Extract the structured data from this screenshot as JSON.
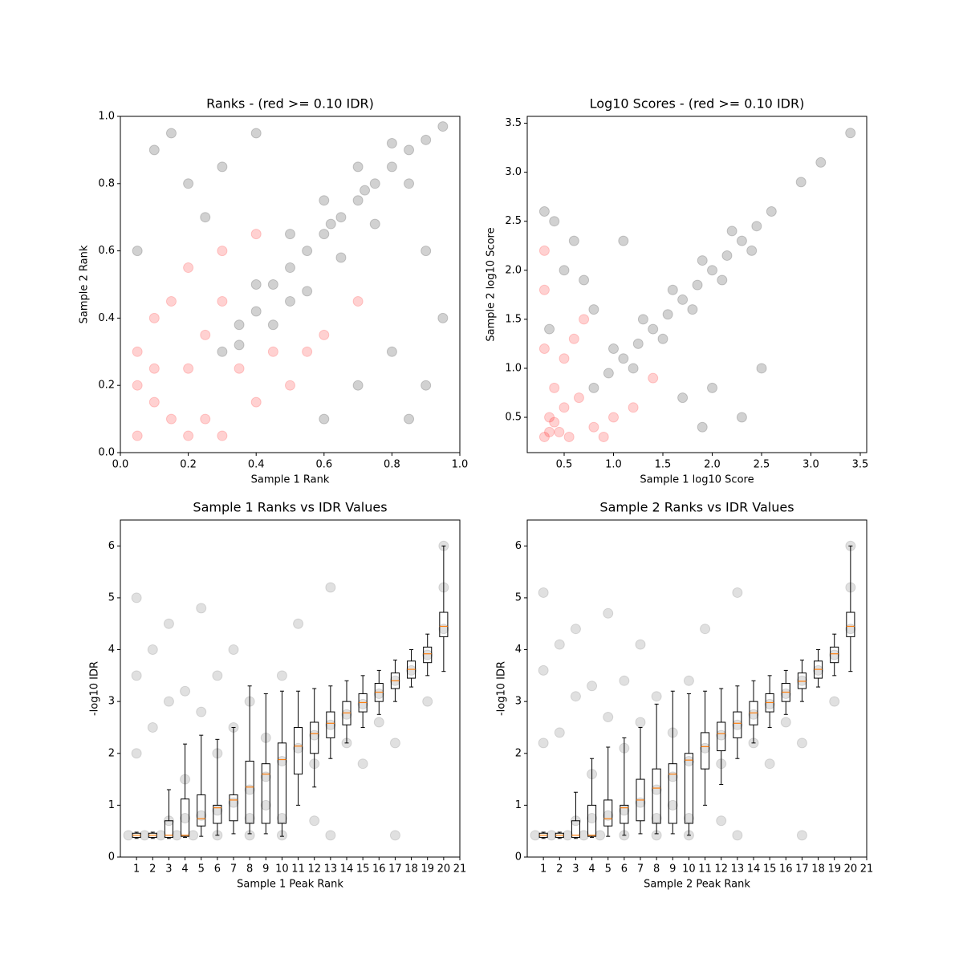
{
  "chart_data": [
    {
      "type": "scatter",
      "title": "Ranks - (red >= 0.10 IDR)",
      "x_label": "Sample 1 Rank",
      "y_label": "Sample 2 Rank",
      "xlim": [
        0,
        1
      ],
      "ylim": [
        0,
        1
      ],
      "xticks": [
        {
          "value": 0,
          "label": "0.0"
        },
        {
          "value": 0.2,
          "label": "0.2"
        },
        {
          "value": 0.4,
          "label": "0.4"
        },
        {
          "value": 0.6,
          "label": "0.6"
        },
        {
          "value": 0.8,
          "label": "0.8"
        },
        {
          "value": 1,
          "label": "1.0"
        }
      ],
      "yticks": [
        {
          "value": 0,
          "label": "0.0"
        },
        {
          "value": 0.2,
          "label": "0.2"
        },
        {
          "value": 0.4,
          "label": "0.4"
        },
        {
          "value": 0.6,
          "label": "0.6"
        },
        {
          "value": 0.8,
          "label": "0.8"
        },
        {
          "value": 1,
          "label": "1.0"
        }
      ],
      "series": [
        {
          "color": "#ff0000",
          "x": [
            0.05,
            0.1,
            0.15,
            0.2,
            0.05,
            0.1,
            0.25,
            0.3,
            0.4,
            0.5,
            0.15,
            0.2,
            0.3,
            0.55,
            0.6,
            0.05,
            0.2,
            0.35,
            0.25,
            0.45,
            0.3,
            0.1,
            0.7,
            0.4
          ],
          "values": [
            0.05,
            0.15,
            0.1,
            0.25,
            0.3,
            0.4,
            0.1,
            0.05,
            0.15,
            0.2,
            0.45,
            0.55,
            0.6,
            0.3,
            0.35,
            0.2,
            0.05,
            0.25,
            0.35,
            0.3,
            0.45,
            0.25,
            0.45,
            0.65
          ]
        },
        {
          "color": "#000000",
          "x": [
            0.3,
            0.35,
            0.4,
            0.45,
            0.5,
            0.55,
            0.6,
            0.65,
            0.7,
            0.75,
            0.8,
            0.85,
            0.9,
            0.95,
            0.4,
            0.5,
            0.6,
            0.7,
            0.8,
            0.45,
            0.55,
            0.65,
            0.75,
            0.85,
            0.35,
            0.5,
            0.62,
            0.72,
            0.1,
            0.2,
            0.05,
            0.15,
            0.3,
            0.9,
            0.85,
            0.95,
            0.8,
            0.7,
            0.6,
            0.9,
            0.25,
            0.4
          ],
          "values": [
            0.3,
            0.38,
            0.42,
            0.5,
            0.55,
            0.6,
            0.65,
            0.7,
            0.75,
            0.8,
            0.85,
            0.9,
            0.93,
            0.97,
            0.5,
            0.65,
            0.75,
            0.85,
            0.92,
            0.38,
            0.48,
            0.58,
            0.68,
            0.8,
            0.32,
            0.45,
            0.68,
            0.78,
            0.9,
            0.8,
            0.6,
            0.95,
            0.85,
            0.2,
            0.1,
            0.4,
            0.3,
            0.2,
            0.1,
            0.6,
            0.7,
            0.95
          ]
        }
      ]
    },
    {
      "type": "scatter",
      "title": "Log10 Scores - (red >= 0.10 IDR)",
      "x_label": "Sample 1 log10 Score",
      "y_label": "Sample 2 log10 Score",
      "xlim": [
        0.126,
        3.565
      ],
      "ylim": [
        0.14,
        3.57
      ],
      "xticks": [
        0.5,
        {
          "value": 1,
          "label": "1.0"
        },
        1.5,
        {
          "value": 2,
          "label": "2.0"
        },
        2.5,
        {
          "value": 3,
          "label": "3.0"
        },
        3.5
      ],
      "yticks": [
        0.5,
        {
          "value": 1,
          "label": "1.0"
        },
        1.5,
        {
          "value": 2,
          "label": "2.0"
        },
        2.5,
        {
          "value": 3,
          "label": "3.0"
        },
        3.5
      ],
      "series": [
        {
          "color": "#ff0000",
          "x": [
            0.3,
            0.35,
            0.4,
            0.5,
            0.6,
            0.7,
            0.3,
            0.35,
            0.4,
            0.5,
            0.8,
            1.0,
            1.2,
            1.4,
            0.45,
            0.55,
            0.3,
            0.3,
            0.65,
            0.9
          ],
          "values": [
            0.3,
            0.5,
            0.8,
            1.1,
            1.3,
            1.5,
            1.8,
            0.35,
            0.45,
            0.6,
            0.4,
            0.5,
            0.6,
            0.9,
            0.35,
            0.3,
            2.2,
            1.2,
            0.7,
            0.3
          ]
        },
        {
          "color": "#000000",
          "x": [
            0.8,
            0.95,
            1.1,
            1.25,
            1.4,
            1.55,
            1.7,
            1.85,
            2.0,
            2.15,
            2.3,
            2.45,
            2.6,
            1.0,
            1.3,
            1.6,
            1.9,
            2.2,
            1.2,
            1.5,
            1.8,
            2.1,
            2.4,
            0.4,
            0.5,
            0.6,
            0.8,
            0.3,
            1.7,
            2.0,
            2.3,
            2.5,
            1.9,
            2.9,
            3.1,
            3.4,
            0.7,
            1.1,
            0.35
          ],
          "values": [
            0.8,
            0.95,
            1.1,
            1.25,
            1.4,
            1.55,
            1.7,
            1.85,
            2.0,
            2.15,
            2.3,
            2.45,
            2.6,
            1.2,
            1.5,
            1.8,
            2.1,
            2.4,
            1.0,
            1.3,
            1.6,
            1.9,
            2.2,
            2.5,
            2.0,
            2.3,
            1.6,
            2.6,
            0.7,
            0.8,
            0.5,
            1.0,
            0.4,
            2.9,
            3.1,
            3.4,
            1.9,
            2.3,
            1.4
          ]
        }
      ]
    },
    {
      "type": "box",
      "title": "Sample 1 Ranks vs IDR Values",
      "x_label": "Sample 1 Peak Rank",
      "y_label": "-log10 IDR",
      "xlim": [
        0,
        21
      ],
      "ylim": [
        0,
        6.5
      ],
      "xticks": [
        1,
        2,
        3,
        4,
        5,
        6,
        7,
        8,
        9,
        10,
        11,
        12,
        13,
        14,
        15,
        16,
        17,
        18,
        19,
        20,
        21
      ],
      "yticks": [
        0,
        1,
        2,
        3,
        4,
        5,
        6
      ],
      "series": [
        {
          "color": "#000000",
          "x": [
            0.5,
            1.5,
            2.5,
            3.5,
            4.5,
            6,
            8,
            10,
            13,
            17,
            1,
            1,
            1,
            2,
            2,
            3,
            3,
            4,
            4,
            5,
            5,
            6,
            6,
            7,
            7,
            8,
            9,
            10,
            11,
            13,
            3,
            4,
            5,
            6,
            7,
            8,
            9,
            10,
            11,
            12,
            13,
            14,
            15,
            16,
            17,
            18,
            19,
            20,
            20,
            20,
            8,
            10,
            12,
            15,
            17,
            19,
            9,
            12,
            14,
            16
          ],
          "values": [
            0.42,
            0.42,
            0.42,
            0.42,
            0.42,
            0.42,
            0.42,
            0.42,
            0.42,
            0.42,
            2,
            3.5,
            5,
            2.5,
            4,
            3,
            4.5,
            1.5,
            3.2,
            2.8,
            4.8,
            2,
            3.5,
            2.5,
            4,
            3,
            2.3,
            3.5,
            4.5,
            5.2,
            0.7,
            0.75,
            0.8,
            0.9,
            1.05,
            1.3,
            1.55,
            1.85,
            2.1,
            2.35,
            2.55,
            2.75,
            2.95,
            3.15,
            3.4,
            3.6,
            3.9,
            4.4,
            5.2,
            6,
            0.75,
            0.75,
            0.7,
            1.8,
            2.2,
            3,
            1,
            1.8,
            2.2,
            2.6
          ]
        }
      ],
      "boxes": {
        "color": "#000000",
        "median_color": "#ff7f0e",
        "x": [
          1,
          2,
          3,
          4,
          5,
          6,
          7,
          8,
          9,
          10,
          11,
          12,
          13,
          14,
          15,
          16,
          17,
          18,
          19,
          20
        ],
        "median": [
          0.42,
          0.42,
          0.42,
          0.42,
          0.74,
          0.95,
          1.1,
          1.35,
          1.6,
          1.88,
          2.14,
          2.38,
          2.58,
          2.78,
          2.98,
          3.18,
          3.4,
          3.62,
          3.92,
          4.45
        ],
        "q1": [
          0.38,
          0.38,
          0.38,
          0.4,
          0.6,
          0.65,
          0.7,
          0.65,
          0.65,
          0.65,
          1.6,
          2.0,
          2.3,
          2.55,
          2.8,
          3.0,
          3.25,
          3.45,
          3.75,
          4.25
        ],
        "q3": [
          0.46,
          0.46,
          0.7,
          1.12,
          1.2,
          1.0,
          1.2,
          1.85,
          1.8,
          2.2,
          2.5,
          2.6,
          2.8,
          3.0,
          3.15,
          3.35,
          3.55,
          3.78,
          4.05,
          4.72
        ],
        "whislo": [
          0.36,
          0.36,
          0.36,
          0.38,
          0.4,
          0.42,
          0.45,
          0.45,
          0.45,
          0.4,
          1.0,
          1.35,
          1.9,
          2.2,
          2.5,
          2.75,
          3.0,
          3.28,
          3.5,
          3.58
        ],
        "whishi": [
          0.48,
          0.48,
          1.3,
          2.18,
          2.35,
          2.27,
          2.5,
          3.3,
          3.15,
          3.2,
          3.2,
          3.25,
          3.3,
          3.4,
          3.5,
          3.6,
          3.8,
          4.0,
          4.3,
          6.0
        ]
      }
    },
    {
      "type": "box",
      "title": "Sample 2 Ranks vs IDR Values",
      "x_label": "Sample 2 Peak Rank",
      "y_label": "-log10 IDR",
      "xlim": [
        0,
        21
      ],
      "ylim": [
        0,
        6.5
      ],
      "xticks": [
        1,
        2,
        3,
        4,
        5,
        6,
        7,
        8,
        9,
        10,
        11,
        12,
        13,
        14,
        15,
        16,
        17,
        18,
        19,
        20,
        21
      ],
      "yticks": [
        0,
        1,
        2,
        3,
        4,
        5,
        6
      ],
      "series": [
        {
          "color": "#000000",
          "x": [
            0.5,
            1.5,
            2.5,
            3.5,
            4.5,
            6,
            8,
            10,
            13,
            17,
            1,
            1,
            1,
            2,
            2,
            3,
            3,
            4,
            4,
            5,
            5,
            6,
            6,
            7,
            7,
            8,
            9,
            10,
            11,
            13,
            3,
            4,
            5,
            6,
            7,
            8,
            9,
            10,
            11,
            12,
            13,
            14,
            15,
            16,
            17,
            18,
            19,
            20,
            20,
            20,
            8,
            10,
            12,
            15,
            17,
            19,
            9,
            12,
            14,
            16
          ],
          "values": [
            0.42,
            0.42,
            0.42,
            0.42,
            0.42,
            0.42,
            0.42,
            0.42,
            0.42,
            0.42,
            2.2,
            3.6,
            5.1,
            2.4,
            4.1,
            3.1,
            4.4,
            1.6,
            3.3,
            2.7,
            4.7,
            2.1,
            3.4,
            2.6,
            4.1,
            3.1,
            2.4,
            3.4,
            4.4,
            5.1,
            0.7,
            0.75,
            0.8,
            0.9,
            1.05,
            1.3,
            1.55,
            1.85,
            2.1,
            2.35,
            2.55,
            2.75,
            2.95,
            3.15,
            3.4,
            3.6,
            3.9,
            4.4,
            5.2,
            6,
            0.75,
            0.75,
            0.7,
            1.8,
            2.2,
            3,
            1,
            1.8,
            2.2,
            2.6
          ]
        }
      ],
      "boxes": {
        "color": "#000000",
        "median_color": "#ff7f0e",
        "x": [
          1,
          2,
          3,
          4,
          5,
          6,
          7,
          8,
          9,
          10,
          11,
          12,
          13,
          14,
          15,
          16,
          17,
          18,
          19,
          20
        ],
        "median": [
          0.42,
          0.42,
          0.42,
          0.42,
          0.74,
          0.95,
          1.1,
          1.33,
          1.6,
          1.87,
          2.13,
          2.38,
          2.58,
          2.78,
          2.98,
          3.18,
          3.39,
          3.62,
          3.92,
          4.45
        ],
        "q1": [
          0.38,
          0.38,
          0.38,
          0.4,
          0.6,
          0.65,
          0.7,
          0.65,
          0.65,
          0.65,
          1.7,
          2.05,
          2.3,
          2.55,
          2.8,
          3.0,
          3.25,
          3.45,
          3.75,
          4.25
        ],
        "q3": [
          0.46,
          0.46,
          0.7,
          1.0,
          1.1,
          1.0,
          1.5,
          1.7,
          1.8,
          2.0,
          2.4,
          2.6,
          2.8,
          3.0,
          3.15,
          3.35,
          3.55,
          3.78,
          4.05,
          4.72
        ],
        "whislo": [
          0.36,
          0.36,
          0.36,
          0.38,
          0.4,
          0.42,
          0.45,
          0.45,
          0.45,
          0.42,
          1.0,
          1.4,
          1.9,
          2.2,
          2.5,
          2.75,
          3.0,
          3.28,
          3.5,
          3.58
        ],
        "whishi": [
          0.48,
          0.48,
          1.25,
          1.9,
          2.12,
          2.3,
          2.5,
          2.95,
          3.2,
          3.15,
          3.2,
          3.25,
          3.3,
          3.4,
          3.5,
          3.6,
          3.8,
          4.0,
          4.3,
          6.0
        ]
      }
    }
  ]
}
